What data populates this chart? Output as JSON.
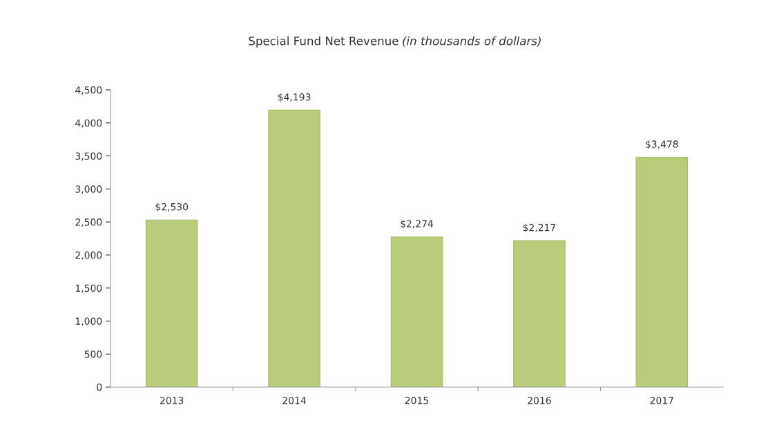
{
  "chart_data": {
    "type": "bar",
    "title": "Special Fund Net Revenue",
    "subtitle": "(in thousands of dollars)",
    "categories": [
      "2013",
      "2014",
      "2015",
      "2016",
      "2017"
    ],
    "values": [
      2530,
      4193,
      2274,
      2217,
      3478
    ],
    "value_labels": [
      "$2,530",
      "$4,193",
      "$2,274",
      "$2,217",
      "$3,478"
    ],
    "color": "#b8cc7c",
    "ylim": [
      0,
      4500
    ],
    "yticks": [
      0,
      500,
      {
        "value": 1000,
        "label": "1,000"
      },
      {
        "value": 1500,
        "label": "1,500"
      },
      {
        "value": 2000,
        "label": "2,000"
      },
      {
        "value": 2500,
        "label": "2,500"
      },
      {
        "value": 3000,
        "label": "3,000"
      },
      {
        "value": 3500,
        "label": "3,500"
      },
      {
        "value": 4000,
        "label": "4,000"
      },
      {
        "value": 4500,
        "label": "4,500"
      }
    ],
    "grid": false,
    "legend": false
  }
}
